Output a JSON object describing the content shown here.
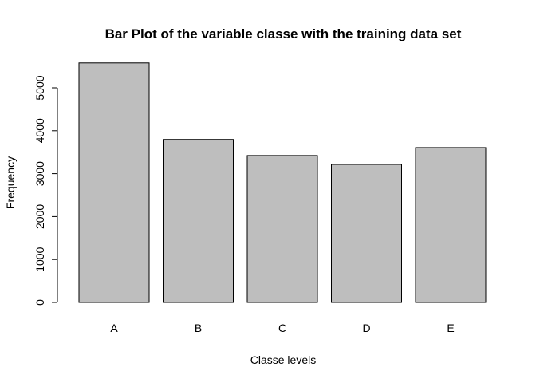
{
  "chart_data": {
    "type": "bar",
    "title": "Bar Plot of the variable classe with the training data set",
    "xlabel": "Classe levels",
    "ylabel": "Frequency",
    "categories": [
      "A",
      "B",
      "C",
      "D",
      "E"
    ],
    "values": [
      5580,
      3797,
      3422,
      3216,
      3607
    ],
    "ylim": [
      0,
      5580
    ],
    "yticks": [
      0,
      1000,
      2000,
      3000,
      4000,
      5000
    ],
    "ytick_labels": [
      "0",
      "1000",
      "2000",
      "3000",
      "4000",
      "5000"
    ],
    "bar_fill": "#bebebe",
    "bar_stroke": "#000000",
    "grid": false,
    "legend": "none"
  }
}
